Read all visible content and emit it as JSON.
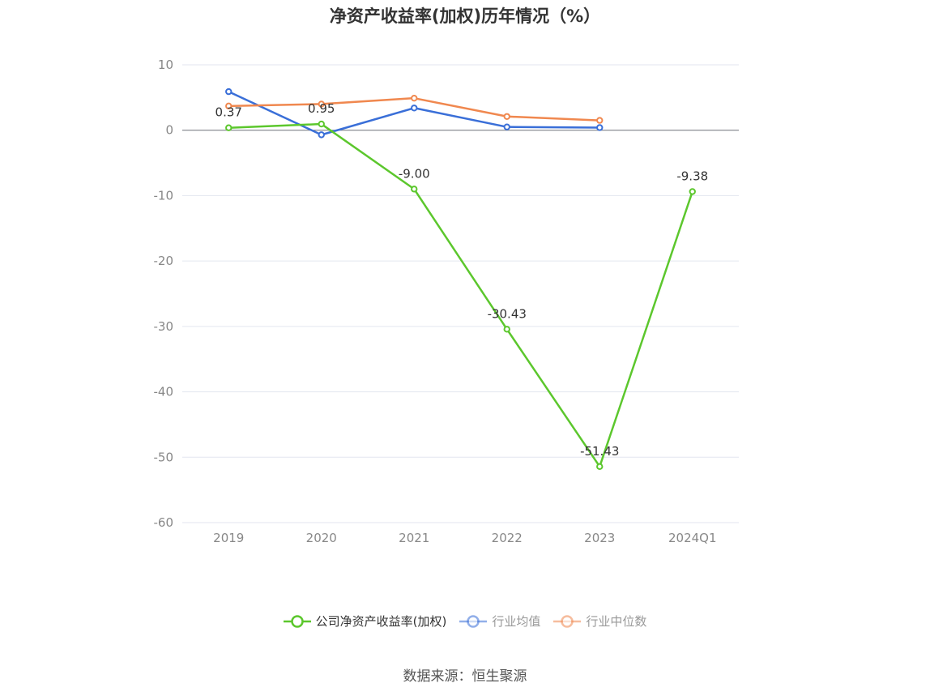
{
  "title": "净资产收益率(加权)历年情况（%）",
  "source": "数据来源：恒生聚源",
  "colors": {
    "company": "#5cc72d",
    "industry_avg": "#3a6fd8",
    "industry_median": "#f0884f",
    "grid": "#e3e6ef",
    "axis": "#6e7079",
    "tick": "#888888",
    "label": "#333333"
  },
  "chart_data": {
    "type": "line",
    "categories": [
      "2019",
      "2020",
      "2021",
      "2022",
      "2023",
      "2024Q1"
    ],
    "ylim": [
      -60,
      10
    ],
    "yticks": [
      10,
      0,
      -10,
      -20,
      -30,
      -40,
      -50,
      -60
    ],
    "grid": true,
    "legend_position": "bottom",
    "series": [
      {
        "name": "公司净资产收益率(加权)",
        "key": "company",
        "values": [
          0.37,
          0.95,
          -9.0,
          -30.43,
          -51.43,
          -9.38
        ],
        "labels": [
          "0.37",
          "0.95",
          "-9.00",
          "-30.43",
          "-51.43",
          "-9.38"
        ],
        "active": true
      },
      {
        "name": "行业均值",
        "key": "industry_avg",
        "values": [
          5.9,
          -0.7,
          3.4,
          0.5,
          0.4,
          null
        ],
        "active": false
      },
      {
        "name": "行业中位数",
        "key": "industry_median",
        "values": [
          3.7,
          4.0,
          4.9,
          2.1,
          1.5,
          null
        ],
        "active": false
      }
    ]
  }
}
